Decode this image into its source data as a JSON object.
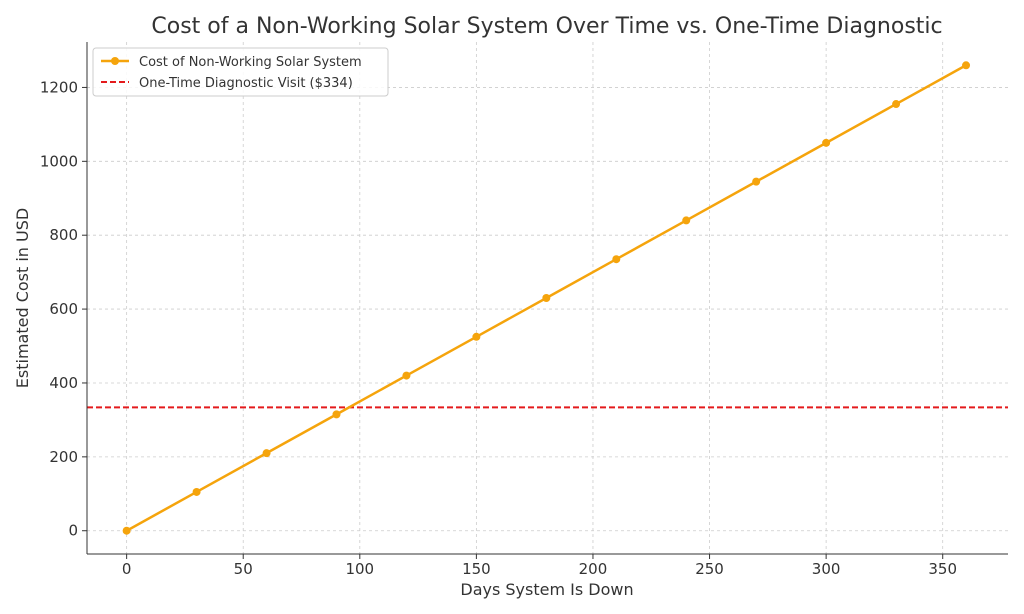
{
  "chart_data": {
    "type": "line",
    "title": "Cost of a Non-Working Solar System Over Time vs. One-Time Diagnostic",
    "xlabel": "Days System Is Down",
    "ylabel": "Estimated Cost in USD",
    "xlim": [
      -17,
      378
    ],
    "ylim": [
      -63,
      1323
    ],
    "xticks": [
      0,
      50,
      100,
      150,
      200,
      250,
      300,
      350
    ],
    "yticks": [
      0,
      200,
      400,
      600,
      800,
      1000,
      1200
    ],
    "grid": true,
    "legend_position": "upper-left",
    "series": [
      {
        "name": "Cost of Non-Working Solar System",
        "color": "#f5a40c",
        "marker": "circle",
        "x": [
          0,
          30,
          60,
          90,
          120,
          150,
          180,
          210,
          240,
          270,
          300,
          330,
          360
        ],
        "y": [
          0,
          105,
          210,
          315,
          420,
          525,
          630,
          735,
          840,
          945,
          1050,
          1155,
          1260
        ]
      }
    ],
    "reference_lines": [
      {
        "name": "One-Time Diagnostic Visit ($334)",
        "orientation": "horizontal",
        "value": 334,
        "color": "#e41a1c",
        "style": "dashed"
      }
    ]
  }
}
